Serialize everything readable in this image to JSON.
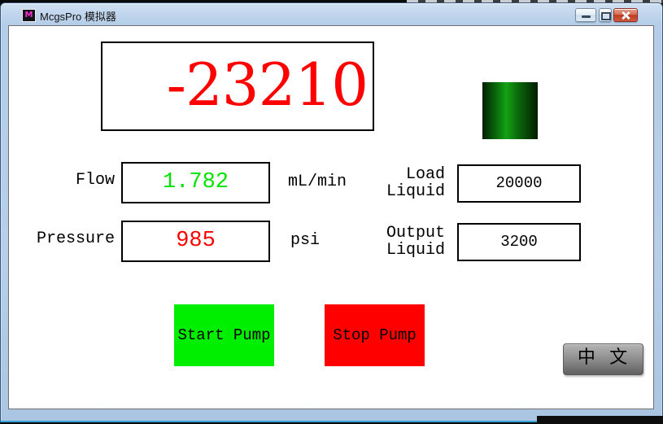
{
  "window": {
    "title": "McgsPro 模拟器",
    "icon_glyph": "M"
  },
  "display": {
    "main_value": "-23210",
    "main_value_color": "#ff0000"
  },
  "indicator": {
    "type": "gradient-lamp",
    "color_bright": "#13a213",
    "color_dark": "#031f03"
  },
  "fields": {
    "flow": {
      "label": "Flow",
      "value": "1.782",
      "unit": "mL/min",
      "value_color": "#00e400"
    },
    "pressure": {
      "label": "Pressure",
      "value": "985",
      "unit": "psi",
      "value_color": "#ff0000"
    },
    "load": {
      "label_line1": "Load",
      "label_line2": "Liquid",
      "value": "20000",
      "value_color": "#000000"
    },
    "output": {
      "label_line1": "Output",
      "label_line2": "Liquid",
      "value": "3200",
      "value_color": "#000000"
    }
  },
  "buttons": {
    "start_pump": {
      "label": "Start Pump",
      "bg": "#00ee00"
    },
    "stop_pump": {
      "label": "Stop Pump",
      "bg": "#fe0000"
    },
    "language": {
      "label": "中 文"
    }
  }
}
